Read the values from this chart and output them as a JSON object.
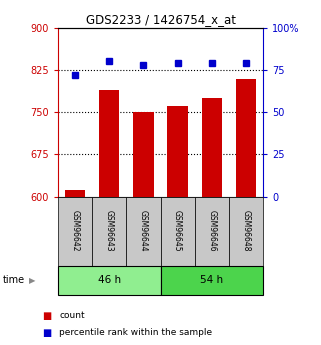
{
  "title": "GDS2233 / 1426754_x_at",
  "samples": [
    "GSM96642",
    "GSM96643",
    "GSM96644",
    "GSM96645",
    "GSM96646",
    "GSM96648"
  ],
  "counts": [
    612,
    790,
    750,
    760,
    775,
    808
  ],
  "percentiles": [
    72,
    80,
    78,
    79,
    79,
    79
  ],
  "ylim_left": [
    600,
    900
  ],
  "ylim_right": [
    0,
    100
  ],
  "yticks_left": [
    600,
    675,
    750,
    825,
    900
  ],
  "yticks_right": [
    0,
    25,
    50,
    75,
    100
  ],
  "groups": [
    {
      "label": "46 h",
      "indices": [
        0,
        1,
        2
      ],
      "color": "#90EE90"
    },
    {
      "label": "54 h",
      "indices": [
        3,
        4,
        5
      ],
      "color": "#4CD44C"
    }
  ],
  "bar_color": "#CC0000",
  "dot_color": "#0000CC",
  "bar_width": 0.6,
  "label_bg_color": "#C8C8C8",
  "title_color": "#000000",
  "left_tick_color": "#CC0000",
  "right_tick_color": "#0000CC",
  "time_label": "time",
  "legend_count_label": "count",
  "legend_pct_label": "percentile rank within the sample"
}
